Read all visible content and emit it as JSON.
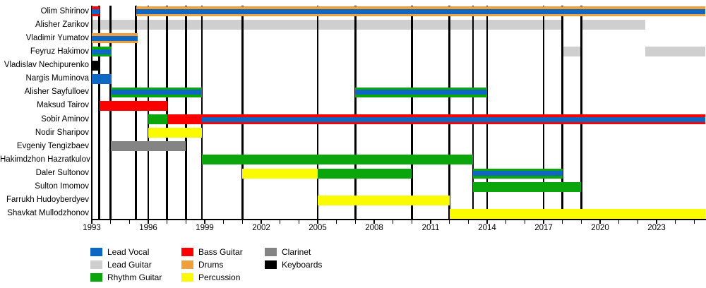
{
  "chart_data": {
    "type": "timeline",
    "description": "Band members timeline (Gantt-style) showing each member's roles over the years, with vertical black lines marking release dates",
    "x_axis": {
      "start_year": 1993,
      "end_year": 2025.6,
      "minor_tick_every_years": 1,
      "minor_tick_start": 1993,
      "minor_tick_end": 2025,
      "labels": [
        "1993",
        "1996",
        "1999",
        "2002",
        "2005",
        "2008",
        "2011",
        "2014",
        "2017",
        "2020",
        "2023"
      ]
    },
    "roles": [
      {
        "id": "lead_vocal",
        "label": "Lead Vocal",
        "color": "#0F67C4"
      },
      {
        "id": "lead_guitar",
        "label": "Lead Guitar",
        "color": "#CFCFCF"
      },
      {
        "id": "rhythm_guitar",
        "label": "Rhythm Guitar",
        "color": "#0BA60B"
      },
      {
        "id": "bass_guitar",
        "label": "Bass Guitar",
        "color": "#FA0000"
      },
      {
        "id": "drums",
        "label": "Drums",
        "color": "#EFA03C"
      },
      {
        "id": "percussion",
        "label": "Percussion",
        "color": "#FBFB00"
      },
      {
        "id": "clarinet",
        "label": "Clarinet",
        "color": "#848484"
      },
      {
        "id": "keyboards",
        "label": "Keyboards",
        "color": "#000000"
      }
    ],
    "members": [
      {
        "name": "Olim Shirinov",
        "segments": [
          {
            "roles": [
              "bass_guitar",
              "lead_vocal"
            ],
            "start": 1993.0,
            "end": 1993.4
          },
          {
            "roles": [
              "drums",
              "lead_vocal"
            ],
            "start": 1995.35,
            "end": 2025.6
          }
        ]
      },
      {
        "name": "Alisher Zarikov",
        "segments": [
          {
            "roles": [
              "lead_guitar"
            ],
            "start": 1993.0,
            "end": 2018.0
          },
          {
            "roles": [
              "lead_guitar"
            ],
            "start": 2019.0,
            "end": 2022.4
          }
        ]
      },
      {
        "name": "Vladimir Yumatov",
        "segments": [
          {
            "roles": [
              "drums",
              "lead_vocal"
            ],
            "start": 1993.0,
            "end": 1995.45
          }
        ]
      },
      {
        "name": "Feyruz Hakimov",
        "segments": [
          {
            "roles": [
              "rhythm_guitar",
              "lead_vocal"
            ],
            "start": 1993.0,
            "end": 1994.05
          },
          {
            "roles": [
              "lead_guitar"
            ],
            "start": 2018.0,
            "end": 2019.05
          },
          {
            "roles": [
              "lead_guitar"
            ],
            "start": 2022.4,
            "end": 2025.6
          }
        ]
      },
      {
        "name": "Vladislav Nechipurenko",
        "segments": [
          {
            "roles": [
              "keyboards"
            ],
            "start": 1993.0,
            "end": 1993.4
          }
        ]
      },
      {
        "name": "Nargis Muminova",
        "segments": [
          {
            "roles": [
              "lead_vocal"
            ],
            "start": 1993.0,
            "end": 1994.05
          }
        ]
      },
      {
        "name": "Alisher Sayfulloev",
        "segments": [
          {
            "roles": [
              "rhythm_guitar",
              "lead_vocal"
            ],
            "start": 1994.0,
            "end": 1998.85
          },
          {
            "roles": [
              "rhythm_guitar",
              "lead_vocal"
            ],
            "start": 2007.0,
            "end": 2014.0
          }
        ]
      },
      {
        "name": "Maksud Tairov",
        "segments": [
          {
            "roles": [
              "bass_guitar"
            ],
            "start": 1993.4,
            "end": 1997.0
          }
        ]
      },
      {
        "name": "Sobir Aminov",
        "segments": [
          {
            "roles": [
              "rhythm_guitar"
            ],
            "start": 1996.0,
            "end": 1997.0
          },
          {
            "roles": [
              "bass_guitar"
            ],
            "start": 1997.0,
            "end": 1998.85
          },
          {
            "roles": [
              "bass_guitar",
              "lead_vocal"
            ],
            "start": 1998.85,
            "end": 2025.6
          }
        ]
      },
      {
        "name": "Nodir Sharipov",
        "segments": [
          {
            "roles": [
              "percussion"
            ],
            "start": 1996.0,
            "end": 1998.85
          }
        ]
      },
      {
        "name": "Evgeniy Tengizbaev",
        "segments": [
          {
            "roles": [
              "clarinet"
            ],
            "start": 1994.0,
            "end": 1998.0
          }
        ]
      },
      {
        "name": "Hakimdzhon Hazratkulov",
        "segments": [
          {
            "roles": [
              "rhythm_guitar"
            ],
            "start": 1998.85,
            "end": 2013.25
          }
        ]
      },
      {
        "name": "Daler Sultonov",
        "segments": [
          {
            "roles": [
              "percussion"
            ],
            "start": 2001.0,
            "end": 2005.0
          },
          {
            "roles": [
              "rhythm_guitar"
            ],
            "start": 2005.0,
            "end": 2010.0
          },
          {
            "roles": [
              "rhythm_guitar",
              "lead_vocal"
            ],
            "start": 2013.25,
            "end": 2018.0
          }
        ]
      },
      {
        "name": "Sulton Imomov",
        "segments": [
          {
            "roles": [
              "rhythm_guitar"
            ],
            "start": 2013.25,
            "end": 2019.0
          }
        ]
      },
      {
        "name": "Farrukh Hudoyberdyev",
        "segments": [
          {
            "roles": [
              "percussion"
            ],
            "start": 2005.0,
            "end": 2012.0
          }
        ]
      },
      {
        "name": "Shavkat Mullodzhonov",
        "segments": [
          {
            "roles": [
              "percussion"
            ],
            "start": 2012.0,
            "end": 2025.6
          }
        ]
      }
    ],
    "release_line_years": [
      1993.4,
      1994.0,
      1995.35,
      1996.0,
      1997.0,
      1998.0,
      1998.85,
      2001.0,
      2005.0,
      2007.0,
      2010.0,
      2012.0,
      2013.25,
      2014.0,
      2017.0,
      2018.0,
      2019.0
    ]
  },
  "legend": {
    "columns": [
      {
        "role_ids": [
          "lead_vocal",
          "lead_guitar",
          "rhythm_guitar"
        ]
      },
      {
        "role_ids": [
          "bass_guitar",
          "drums",
          "percussion"
        ]
      },
      {
        "role_ids": [
          "clarinet",
          "keyboards"
        ]
      }
    ]
  }
}
